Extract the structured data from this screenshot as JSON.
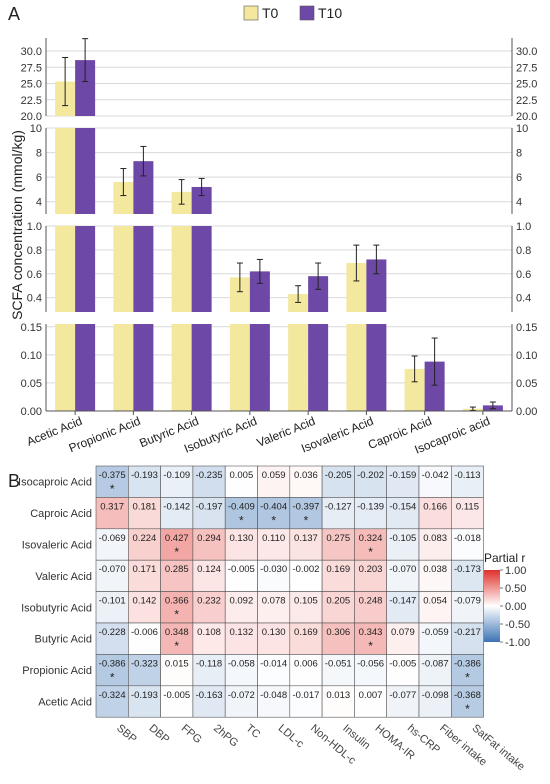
{
  "panel_a": {
    "label": "A",
    "ylabel": "SCFA concentration (mmol/kg)",
    "legend": {
      "items": [
        "T0",
        "T10"
      ]
    }
  },
  "panel_b": {
    "label": "B",
    "legend_title": "Partial r",
    "colorbar_ticks": [
      "1.00",
      "0.50",
      "0.00",
      "-0.50",
      "-1.00"
    ]
  },
  "colors": {
    "T0": "#f3e89e",
    "T10": "#6e48a6",
    "heat_pos": "#e0302a",
    "heat_neg": "#3c73b4",
    "heat_mid": "#ffffff"
  },
  "chart_data": [
    {
      "type": "bar",
      "title": "",
      "xlabel": "",
      "ylabel": "SCFA concentration (mmol/kg)",
      "broken_y_axis": true,
      "categories": [
        "Acetic Acid",
        "Propionic Acid",
        "Butyric Acid",
        "Isobutyric Acid",
        "Valeric Acid",
        "Isovaleric Acid",
        "Caproic Acid",
        "Isocaproic acid"
      ],
      "series": [
        {
          "name": "T0",
          "values": [
            25.3,
            5.6,
            4.8,
            0.57,
            0.43,
            0.69,
            0.075,
            0.004
          ],
          "errors": [
            3.7,
            1.1,
            1.0,
            0.12,
            0.07,
            0.15,
            0.023,
            0.003
          ]
        },
        {
          "name": "T10",
          "values": [
            28.6,
            7.3,
            5.2,
            0.62,
            0.58,
            0.72,
            0.088,
            0.01
          ],
          "errors": [
            3.3,
            1.2,
            0.7,
            0.1,
            0.11,
            0.12,
            0.042,
            0.006
          ]
        }
      ],
      "segments": [
        {
          "ylim": [
            20,
            32
          ],
          "ticks": [
            "20.0",
            "22.5",
            "25.0",
            "27.5",
            "30.0"
          ],
          "categories": [
            "Acetic Acid"
          ]
        },
        {
          "ylim": [
            3,
            10
          ],
          "ticks": [
            "4",
            "6",
            "8",
            "10"
          ],
          "categories": [
            "Propionic Acid",
            "Butyric Acid"
          ]
        },
        {
          "ylim": [
            0.28,
            1.0
          ],
          "ticks": [
            "0.4",
            "0.6",
            "0.8",
            "1.0"
          ],
          "categories": [
            "Isobutyric Acid",
            "Valeric Acid",
            "Isovaleric Acid"
          ]
        },
        {
          "ylim": [
            0,
            0.155
          ],
          "ticks": [
            "0.00",
            "0.05",
            "0.10",
            "0.15"
          ],
          "categories": [
            "Caproic Acid",
            "Isocaproic acid"
          ]
        }
      ],
      "grid": true,
      "legend_position": "top"
    },
    {
      "type": "heatmap",
      "title": "",
      "colorbar_label": "Partial r",
      "colorbar_range": [
        -1,
        1
      ],
      "rows": [
        "Isocaproic Acid",
        "Caproic Acid",
        "Isovaleric Acid",
        "Valeric Acid",
        "Isobutyric Acid",
        "Butyric Acid",
        "Propionic Acid",
        "Acetic Acid"
      ],
      "columns": [
        "SBP",
        "DBP",
        "FPG",
        "2hPG",
        "TC",
        "LDL-c",
        "Non-HDL-c",
        "Insulin",
        "HOMA-IR",
        "hs-CRP",
        "Fiber intake",
        "SatFat intake"
      ],
      "values": [
        [
          -0.375,
          -0.193,
          -0.109,
          -0.235,
          0.005,
          0.059,
          0.036,
          -0.205,
          -0.202,
          -0.159,
          -0.042,
          -0.113
        ],
        [
          0.317,
          0.181,
          -0.142,
          -0.197,
          -0.409,
          -0.404,
          -0.397,
          -0.127,
          -0.139,
          -0.154,
          0.166,
          0.115
        ],
        [
          -0.069,
          0.224,
          0.427,
          0.294,
          0.13,
          0.11,
          0.137,
          0.275,
          0.324,
          -0.105,
          0.083,
          -0.018
        ],
        [
          -0.07,
          0.171,
          0.285,
          0.124,
          -0.005,
          -0.03,
          -0.002,
          0.169,
          0.203,
          -0.07,
          0.038,
          -0.173
        ],
        [
          -0.101,
          0.142,
          0.366,
          0.232,
          0.092,
          0.078,
          0.105,
          0.205,
          0.248,
          -0.147,
          0.054,
          -0.079
        ],
        [
          -0.228,
          -0.006,
          0.348,
          0.108,
          0.132,
          0.13,
          0.169,
          0.306,
          0.343,
          0.079,
          -0.059,
          -0.217
        ],
        [
          -0.386,
          -0.323,
          0.015,
          -0.118,
          -0.058,
          -0.014,
          0.006,
          -0.051,
          -0.056,
          -0.005,
          -0.087,
          -0.386
        ],
        [
          -0.324,
          -0.193,
          -0.005,
          -0.163,
          -0.072,
          -0.048,
          -0.017,
          0.013,
          0.007,
          -0.077,
          -0.098,
          -0.368
        ]
      ],
      "value_labels": [
        [
          "-0.375",
          "-0.193",
          "-0.109",
          "-0.235",
          "0.005",
          "0.059",
          "0.036",
          "-0.205",
          "-0.202",
          "-0.159",
          "-0.042",
          "-0.113"
        ],
        [
          "0.317",
          "0.181",
          "-0.142",
          "-0.197",
          "-0.409",
          "-0.404",
          "-0.397",
          "-0.127",
          "-0.139",
          "-0.154",
          "0.166",
          "0.115"
        ],
        [
          "-0.069",
          "0.224",
          "0.427",
          "0.294",
          "0.130",
          "0.110",
          "0.137",
          "0.275",
          "0.324",
          "-0.105",
          "0.083",
          "-0.018"
        ],
        [
          "-0.070",
          "0.171",
          "0.285",
          "0.124",
          "-0.005",
          "-0.030",
          "-0.002",
          "0.169",
          "0.203",
          "-0.070",
          "0.038",
          "-0.173"
        ],
        [
          "-0.101",
          "0.142",
          "0.366",
          "0.232",
          "0.092",
          "0.078",
          "0.105",
          "0.205",
          "0.248",
          "-0.147",
          "0.054",
          "-0.079"
        ],
        [
          "-0.228",
          "-0.006",
          "0.348",
          "0.108",
          "0.132",
          "0.130",
          "0.169",
          "0.306",
          "0.343",
          "0.079",
          "-0.059",
          "-0.217"
        ],
        [
          "-0.386",
          "-0.323",
          "0.015",
          "-0.118",
          "-0.058",
          "-0.014",
          "0.006",
          "-0.051",
          "-0.056",
          "-0.005",
          "-0.087",
          "-0.386"
        ],
        [
          "-0.324",
          "-0.193",
          "-0.005",
          "-0.163",
          "-0.072",
          "-0.048",
          "-0.017",
          "0.013",
          "0.007",
          "-0.077",
          "-0.098",
          "-0.368"
        ]
      ],
      "significance_marker": "*",
      "significant": [
        [
          0,
          0
        ],
        [
          1,
          4
        ],
        [
          1,
          5
        ],
        [
          1,
          6
        ],
        [
          2,
          2
        ],
        [
          2,
          8
        ],
        [
          4,
          2
        ],
        [
          5,
          2
        ],
        [
          5,
          8
        ],
        [
          6,
          0
        ],
        [
          6,
          11
        ],
        [
          7,
          11
        ]
      ]
    }
  ]
}
